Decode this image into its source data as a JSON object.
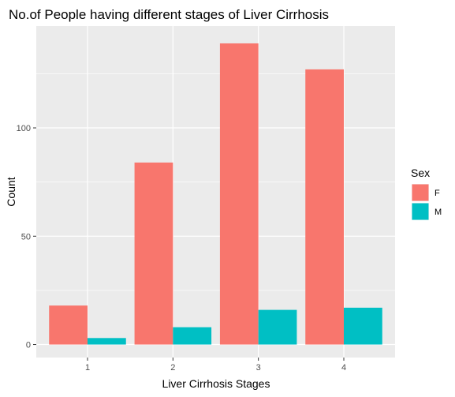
{
  "chart_data": {
    "type": "bar",
    "title": "No.of People having different stages of Liver Cirrhosis",
    "xlabel": "Liver Cirrhosis Stages",
    "ylabel": "Count",
    "categories": [
      "1",
      "2",
      "3",
      "4"
    ],
    "series": [
      {
        "name": "F",
        "values": [
          18,
          84,
          139,
          127
        ],
        "color": "#F8766D"
      },
      {
        "name": "M",
        "values": [
          3,
          8,
          16,
          17
        ],
        "color": "#00BFC4"
      }
    ],
    "yticks": [
      0,
      50,
      100
    ],
    "ylim": [
      -6,
      147
    ],
    "grid": true,
    "panel_background": "#EBEBEB",
    "grid_color": "#FFFFFF",
    "legend": {
      "title": "Sex",
      "placement": "right"
    }
  }
}
